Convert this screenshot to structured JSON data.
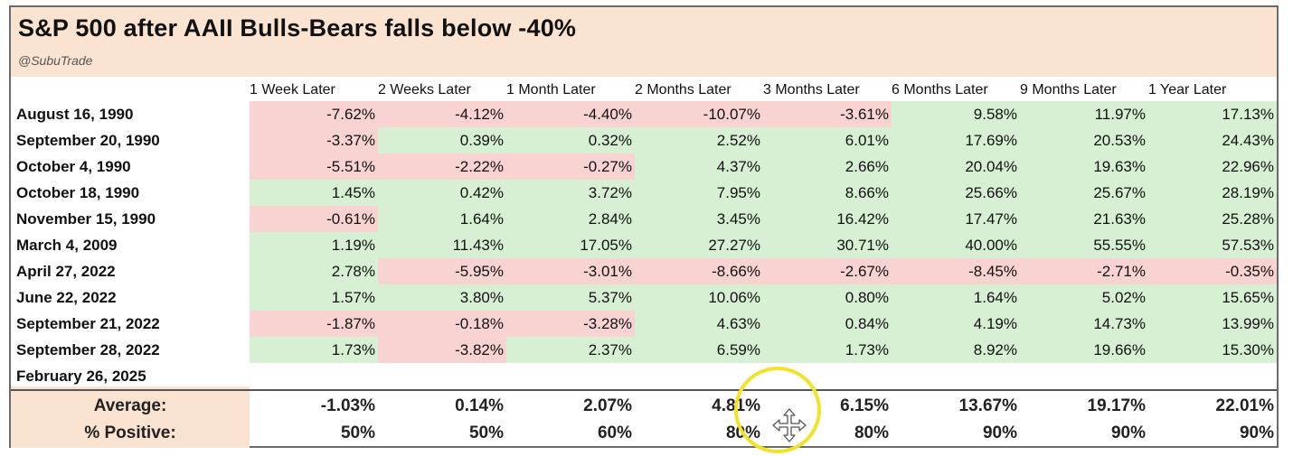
{
  "title": "S&P 500 after AAII Bulls-Bears falls below -40%",
  "handle": "@SubuTrade",
  "colors": {
    "positive": "#d7efd3",
    "negative": "#f8d3d2",
    "negative_text": "#b3322c",
    "header_band": "#fbe3d1"
  },
  "chart_data": {
    "type": "table",
    "title": "S&P 500 after AAII Bulls-Bears falls below -40%",
    "columns": [
      "1 Week Later",
      "2 Weeks Later",
      "1 Month Later",
      "2 Months Later",
      "3 Months Later",
      "6 Months Later",
      "9 Months Later",
      "1 Year Later"
    ],
    "rows": [
      {
        "date": "August 16, 1990",
        "values": [
          "-7.62%",
          "-4.12%",
          "-4.40%",
          "-10.07%",
          "-3.61%",
          "9.58%",
          "11.97%",
          "17.13%"
        ]
      },
      {
        "date": "September 20, 1990",
        "values": [
          "-3.37%",
          "0.39%",
          "0.32%",
          "2.52%",
          "6.01%",
          "17.69%",
          "20.53%",
          "24.43%"
        ]
      },
      {
        "date": "October 4, 1990",
        "values": [
          "-5.51%",
          "-2.22%",
          "-0.27%",
          "4.37%",
          "2.66%",
          "20.04%",
          "19.63%",
          "22.96%"
        ]
      },
      {
        "date": "October 18, 1990",
        "values": [
          "1.45%",
          "0.42%",
          "3.72%",
          "7.95%",
          "8.66%",
          "25.66%",
          "25.67%",
          "28.19%"
        ]
      },
      {
        "date": "November 15, 1990",
        "values": [
          "-0.61%",
          "1.64%",
          "2.84%",
          "3.45%",
          "16.42%",
          "17.47%",
          "21.63%",
          "25.28%"
        ]
      },
      {
        "date": "March 4, 2009",
        "values": [
          "1.19%",
          "11.43%",
          "17.05%",
          "27.27%",
          "30.71%",
          "40.00%",
          "55.55%",
          "57.53%"
        ]
      },
      {
        "date": "April 27, 2022",
        "values": [
          "2.78%",
          "-5.95%",
          "-3.01%",
          "-8.66%",
          "-2.67%",
          "-8.45%",
          "-2.71%",
          "-0.35%"
        ]
      },
      {
        "date": "June 22, 2022",
        "values": [
          "1.57%",
          "3.80%",
          "5.37%",
          "10.06%",
          "0.80%",
          "1.64%",
          "5.02%",
          "15.65%"
        ]
      },
      {
        "date": "September 21, 2022",
        "values": [
          "-1.87%",
          "-0.18%",
          "-3.28%",
          "4.63%",
          "0.84%",
          "4.19%",
          "14.73%",
          "13.99%"
        ]
      },
      {
        "date": "September 28, 2022",
        "values": [
          "1.73%",
          "-3.82%",
          "2.37%",
          "6.59%",
          "1.73%",
          "8.92%",
          "19.66%",
          "15.30%"
        ]
      },
      {
        "date": "February 26, 2025",
        "values": [
          "",
          "",
          "",
          "",
          "",
          "",
          "",
          ""
        ]
      }
    ],
    "summary": [
      {
        "label": "Average:",
        "values": [
          "-1.03%",
          "0.14%",
          "2.07%",
          "4.81%",
          "6.15%",
          "13.67%",
          "19.17%",
          "22.01%"
        ]
      },
      {
        "label": "% Positive:",
        "values": [
          "50%",
          "50%",
          "60%",
          "80%",
          "80%",
          "90%",
          "90%",
          "90%"
        ]
      }
    ]
  }
}
